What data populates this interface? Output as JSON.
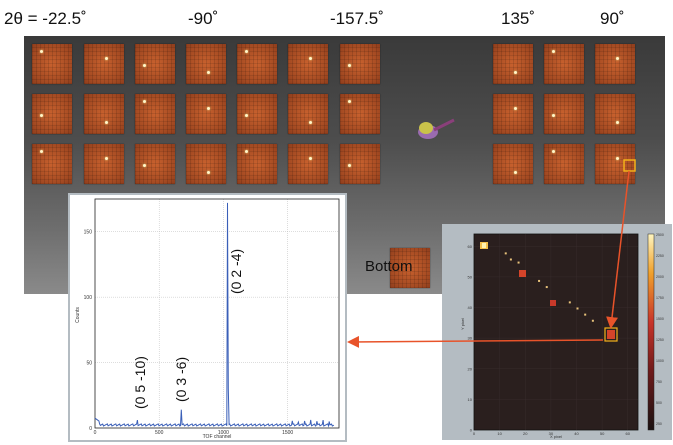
{
  "angles": {
    "a1": "2θ = -22.5˚",
    "a2": "-90˚",
    "a3": "-157.5˚",
    "a4": "135˚",
    "a5": "90˚"
  },
  "bottom_label": "Bottom",
  "tof_plot": {
    "xlabel": "TOF channel",
    "ylabel": "Counts",
    "x_ticks": [
      "0",
      "500",
      "1000",
      "1500"
    ],
    "y_ticks": [
      "0",
      "50",
      "100",
      "150"
    ],
    "peak_labels": [
      "(0 5 -10)",
      "(0 3 -6)",
      "(0 2 -4)"
    ]
  },
  "detector_image": {
    "xlabel": "X pixel",
    "ylabel": "Y pixel",
    "x_ticks": [
      "0",
      "10",
      "20",
      "30",
      "40",
      "50",
      "60"
    ],
    "y_ticks": [
      "0",
      "10",
      "20",
      "30",
      "40",
      "50",
      "60"
    ],
    "colorbar_ticks": [
      "2500",
      "2250",
      "2000",
      "1750",
      "1500",
      "1250",
      "1000",
      "750",
      "500",
      "250"
    ]
  },
  "colors": {
    "arrow": "#e8532a",
    "highlight": "#f5b21a",
    "tof_line": "#3a5fb8",
    "tile": "#b14f24"
  }
}
